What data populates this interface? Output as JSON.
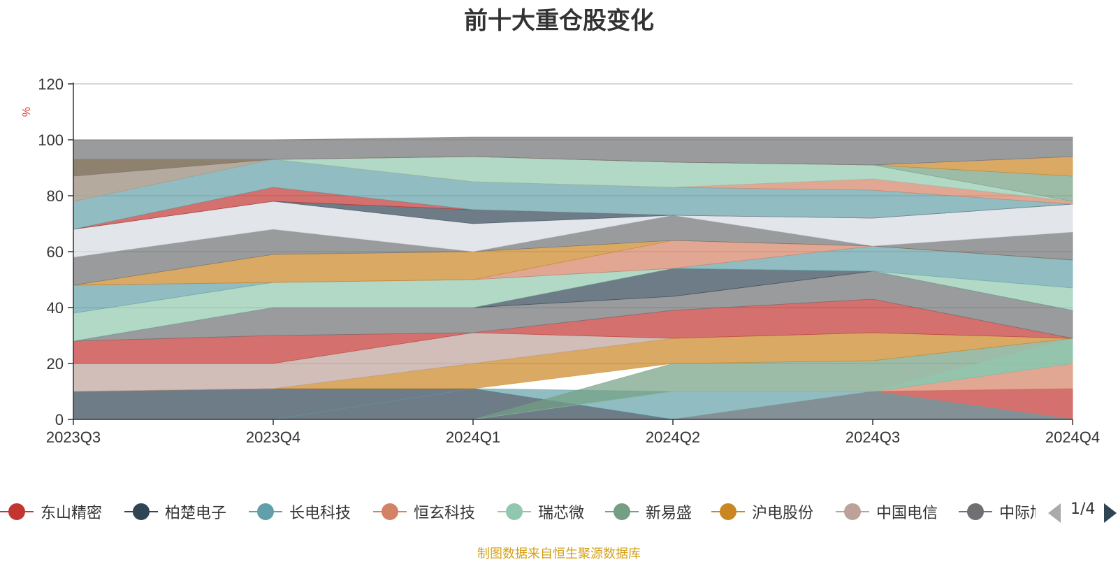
{
  "title": "前十大重仓股变化",
  "source_note": "制图数据来自恒生聚源数据库",
  "legend_pager": "1/4",
  "legend": [
    {
      "label": "东山精密",
      "color": "#c23531"
    },
    {
      "label": "柏楚电子",
      "color": "#2f4554"
    },
    {
      "label": "长电科技",
      "color": "#61a0a8"
    },
    {
      "label": "恒玄科技",
      "color": "#d48265"
    },
    {
      "label": "瑞芯微",
      "color": "#91c7ae"
    },
    {
      "label": "新易盛",
      "color": "#749f83"
    },
    {
      "label": "沪电股份",
      "color": "#ca8622"
    },
    {
      "label": "中国电信",
      "color": "#bda29a"
    },
    {
      "label": "中际旭",
      "color": "#6e7074"
    }
  ],
  "chart_data": {
    "type": "area",
    "title": "前十大重仓股变化",
    "ylabel": "%",
    "xlabel": "",
    "ylim": [
      0,
      120
    ],
    "yticks": [
      0,
      20,
      40,
      60,
      80,
      100,
      120
    ],
    "categories": [
      "2023Q3",
      "2023Q4",
      "2024Q1",
      "2024Q2",
      "2024Q3",
      "2024Q4"
    ],
    "grid": true,
    "legend_position": "bottom",
    "stacked_bands": [
      {
        "lower": [
          0,
          0,
          0,
          0,
          0,
          0
        ],
        "upper": [
          10,
          11,
          11,
          0,
          0,
          0
        ],
        "color": "#2f4554"
      },
      {
        "lower": [
          0,
          0,
          0,
          0,
          0,
          0
        ],
        "upper": [
          0,
          0,
          0,
          0,
          10,
          11
        ],
        "color": "#c23531"
      },
      {
        "lower": [
          0,
          0,
          0,
          0,
          10,
          11
        ],
        "upper": [
          0,
          0,
          0,
          0,
          10,
          20
        ],
        "color": "#d48265"
      },
      {
        "lower": [
          0,
          0,
          11,
          0,
          0,
          0
        ],
        "upper": [
          0,
          0,
          11,
          10,
          10,
          0
        ],
        "color": "#61a0a8"
      },
      {
        "lower": [
          0,
          0,
          0,
          10,
          10,
          20
        ],
        "upper": [
          0,
          0,
          0,
          20,
          21,
          29
        ],
        "color": "#749f83"
      },
      {
        "lower": [
          0,
          0,
          0,
          10,
          10,
          20
        ],
        "upper": [
          0,
          0,
          0,
          10,
          10,
          29
        ],
        "color": "#91c7ae"
      },
      {
        "lower": [
          10,
          11,
          11,
          20,
          21,
          29
        ],
        "upper": [
          10,
          11,
          20,
          29,
          31,
          29
        ],
        "color": "#ca8622"
      },
      {
        "lower": [
          10,
          11,
          20,
          29,
          31,
          29
        ],
        "upper": [
          20,
          20,
          31,
          29,
          31,
          29
        ],
        "color": "#bda29a"
      },
      {
        "lower": [
          20,
          20,
          31,
          29,
          31,
          29
        ],
        "upper": [
          28,
          30,
          31,
          39,
          43,
          29
        ],
        "color": "#c23531"
      },
      {
        "lower": [
          28,
          30,
          31,
          39,
          43,
          29
        ],
        "upper": [
          28,
          40,
          40,
          44,
          53,
          39
        ],
        "color": "#6e7074"
      },
      {
        "lower": [
          28,
          40,
          40,
          44,
          53,
          39
        ],
        "upper": [
          28,
          40,
          40,
          54,
          53,
          39
        ],
        "color": "#2f4554"
      },
      {
        "lower": [
          28,
          40,
          40,
          54,
          53,
          39
        ],
        "upper": [
          38,
          49,
          50,
          54,
          53,
          47
        ],
        "color": "#91c7ae"
      },
      {
        "lower": [
          38,
          49,
          50,
          54,
          53,
          47
        ],
        "upper": [
          48,
          49,
          50,
          54,
          62,
          57
        ],
        "color": "#61a0a8"
      },
      {
        "lower": [
          48,
          49,
          50,
          54,
          62,
          57
        ],
        "upper": [
          48,
          49,
          50,
          64,
          62,
          57
        ],
        "color": "#d48265"
      },
      {
        "lower": [
          48,
          49,
          50,
          64,
          62,
          57
        ],
        "upper": [
          48,
          59,
          60,
          64,
          62,
          57
        ],
        "color": "#ca8622"
      },
      {
        "lower": [
          48,
          59,
          60,
          64,
          62,
          57
        ],
        "upper": [
          58,
          68,
          60,
          73,
          62,
          67
        ],
        "color": "#6e7074"
      },
      {
        "lower": [
          58,
          68,
          60,
          73,
          62,
          67
        ],
        "upper": [
          68,
          78,
          70,
          73,
          72,
          77
        ],
        "color": "#d6dbe2"
      },
      {
        "lower": [
          68,
          78,
          70,
          73,
          72,
          77
        ],
        "upper": [
          68,
          78,
          75,
          73,
          72,
          77
        ],
        "color": "#2f4554"
      },
      {
        "lower": [
          68,
          78,
          75,
          73,
          72,
          77
        ],
        "upper": [
          68,
          83,
          75,
          73,
          72,
          77
        ],
        "color": "#c23531"
      },
      {
        "lower": [
          68,
          83,
          75,
          73,
          72,
          77
        ],
        "upper": [
          78,
          93,
          85,
          83,
          82,
          77
        ],
        "color": "#61a0a8"
      },
      {
        "lower": [
          78,
          93,
          85,
          83,
          82,
          77
        ],
        "upper": [
          78,
          93,
          85,
          83,
          86,
          78
        ],
        "color": "#d48265"
      },
      {
        "lower": [
          78,
          93,
          85,
          83,
          86,
          78
        ],
        "upper": [
          78,
          93,
          94,
          92,
          91,
          78
        ],
        "color": "#91c7ae"
      },
      {
        "lower": [
          78,
          93,
          94,
          92,
          91,
          78
        ],
        "upper": [
          87,
          93,
          94,
          92,
          91,
          87
        ],
        "color": "#749f83"
      },
      {
        "lower": [
          87,
          93,
          94,
          92,
          91,
          87
        ],
        "upper": [
          93,
          93,
          94,
          92,
          91,
          94
        ],
        "color": "#ca8622"
      },
      {
        "lower": [
          93,
          93,
          94,
          92,
          91,
          94
        ],
        "upper": [
          93,
          93,
          94,
          92,
          91,
          94
        ],
        "color": "#bda29a"
      },
      {
        "lower": [
          78,
          93,
          94,
          92,
          91,
          94
        ],
        "upper": [
          87,
          93,
          94,
          92,
          91,
          94
        ],
        "color": "#bda29a"
      },
      {
        "lower": [
          87,
          93,
          94,
          92,
          91,
          94
        ],
        "upper": [
          100,
          100,
          101,
          101,
          101,
          101
        ],
        "color": "#6e7074"
      }
    ]
  }
}
